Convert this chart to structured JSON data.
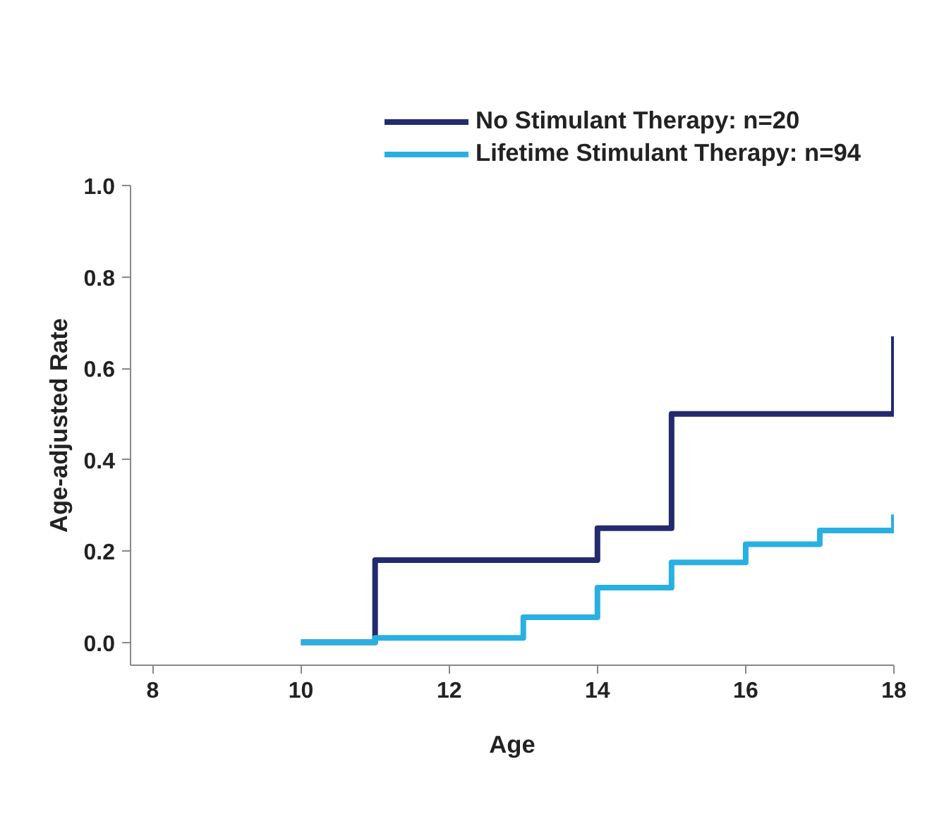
{
  "chart_data": {
    "type": "step",
    "xlabel": "Age",
    "ylabel": "Age-adjusted Rate",
    "xlim": [
      7.7,
      18
    ],
    "ylim": [
      -0.05,
      1.0
    ],
    "xticks": [
      8,
      10,
      12,
      14,
      16,
      18
    ],
    "yticks": [
      {
        "value": 0,
        "label": "0.0"
      },
      {
        "value": 0.2,
        "label": "0.2"
      },
      {
        "value": 0.4,
        "label": "0.4"
      },
      {
        "value": 0.6,
        "label": "0.6"
      },
      {
        "value": 0.8,
        "label": "0.8"
      },
      {
        "value": 1.0,
        "label": "1.0"
      }
    ],
    "grid": false,
    "legend": "top",
    "series": [
      {
        "name": "No Stimulant Therapy: n=20",
        "color": "#232a6e",
        "x": [
          10,
          11,
          14,
          15,
          18,
          18
        ],
        "values": [
          0,
          0.18,
          0.25,
          0.5,
          0.5,
          0.67
        ]
      },
      {
        "name": "Lifetime Stimulant Therapy: n=94",
        "color": "#29b0e3",
        "x": [
          10,
          11,
          13,
          14,
          15,
          16,
          17,
          18,
          18
        ],
        "values": [
          0,
          0.01,
          0.055,
          0.12,
          0.175,
          0.215,
          0.245,
          0.245,
          0.28
        ]
      }
    ]
  }
}
